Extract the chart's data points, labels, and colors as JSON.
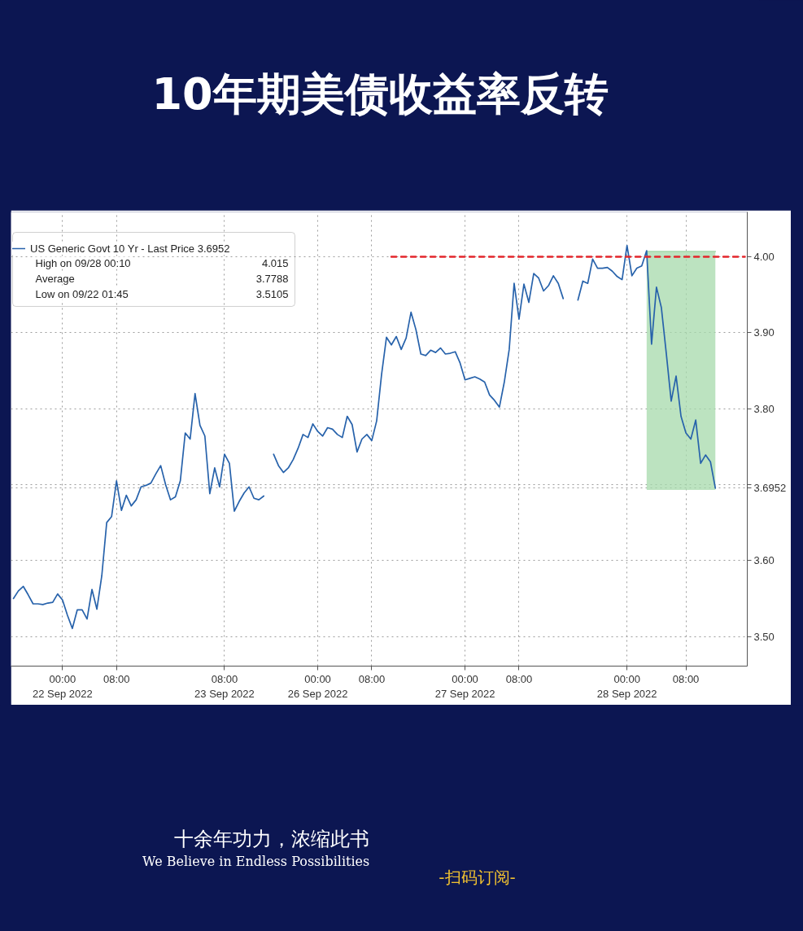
{
  "chart_data": {
    "type": "line",
    "title": "10年期美债收益率反转",
    "categories": [
      null,
      null,
      null,
      null,
      null,
      null,
      null,
      null,
      null,
      null,
      "00:00\n22 Sep 2022",
      null,
      null,
      null,
      null,
      null,
      null,
      null,
      null,
      null,
      null,
      "08:00",
      null,
      null,
      null,
      null,
      null,
      null,
      null,
      null,
      null,
      null,
      null,
      null,
      null,
      null,
      null,
      null,
      null,
      null,
      null,
      null,
      null,
      "08:00\n23 Sep 2022",
      null,
      null,
      null,
      null,
      null,
      null,
      null,
      null,
      null,
      null,
      null,
      null,
      null,
      null,
      null,
      null,
      null,
      null,
      "00:00\n26 Sep 2022",
      null,
      null,
      null,
      null,
      null,
      null,
      null,
      null,
      null,
      null,
      "08:00",
      null,
      null,
      null,
      null,
      null,
      null,
      null,
      null,
      null,
      null,
      null,
      null,
      null,
      null,
      null,
      null,
      null,
      null,
      "00:00\n27 Sep 2022",
      null,
      null,
      null,
      null,
      null,
      null,
      null,
      null,
      null,
      null,
      "08:00",
      null,
      null,
      null,
      null,
      null,
      null,
      null,
      null,
      null,
      null,
      null,
      null,
      null,
      null,
      null,
      null,
      null,
      null,
      null,
      null,
      null,
      "00:00\n28 Sep 2022",
      null,
      null,
      null,
      null,
      null,
      null,
      null,
      null,
      null,
      null,
      null,
      "08:00",
      null,
      null,
      null,
      null,
      null,
      null,
      null,
      null,
      null,
      null,
      null,
      null
    ],
    "ylim": [
      3.461,
      4.059
    ],
    "yticks": [
      {
        "value": 3.5,
        "label": "3.50"
      },
      {
        "value": 3.6,
        "label": "3.60"
      },
      {
        "value": 3.6952,
        "label": "3.6952"
      },
      {
        "value": 3.7,
        "label": null
      },
      {
        "value": 3.8,
        "label": "3.80"
      },
      {
        "value": 3.9,
        "label": "3.90"
      },
      {
        "value": 4.0,
        "label": "4.00"
      }
    ],
    "grid": true,
    "legend": "top left",
    "series": [
      {
        "type": "line",
        "color": "#a6d9ab",
        "values": [
          null,
          null,
          null,
          null,
          null,
          null,
          null,
          null,
          null,
          null,
          null,
          null,
          null,
          null,
          null,
          null,
          null,
          null,
          null,
          null,
          null,
          null,
          null,
          null,
          null,
          null,
          null,
          null,
          null,
          null,
          null,
          null,
          null,
          null,
          null,
          null,
          null,
          null,
          null,
          null,
          null,
          null,
          null,
          null,
          null,
          null,
          null,
          null,
          null,
          null,
          null,
          null,
          null,
          null,
          null,
          null,
          null,
          null,
          null,
          null,
          null,
          null,
          null,
          null,
          null,
          null,
          null,
          null,
          null,
          null,
          null,
          null,
          null,
          null,
          null,
          null,
          null,
          null,
          null,
          null,
          null,
          null,
          null,
          null,
          null,
          null,
          null,
          null,
          null,
          null,
          null,
          null,
          null,
          null,
          null,
          null,
          null,
          null,
          null,
          null,
          null,
          null,
          null,
          null,
          null,
          null,
          null,
          null,
          null,
          null,
          null,
          null,
          null,
          null,
          null,
          null,
          null,
          null,
          null,
          null,
          null,
          null,
          null,
          null,
          null,
          null,
          null,
          null,
          null,
          4.007,
          4.007,
          4.007,
          4.007,
          4.007,
          4.007,
          4.007,
          4.007,
          4.007,
          4.007,
          4.007,
          4.007,
          4.007,
          4.007,
          4.007,
          null,
          null,
          null,
          null,
          null,
          null
        ],
        "upper": [
          null,
          null,
          null,
          null,
          null,
          null,
          null,
          null,
          null,
          null,
          null,
          null,
          null,
          null,
          null,
          null,
          null,
          null,
          null,
          null,
          null,
          null,
          null,
          null,
          null,
          null,
          null,
          null,
          null,
          null,
          null,
          null,
          null,
          null,
          null,
          null,
          null,
          null,
          null,
          null,
          null,
          null,
          null,
          null,
          null,
          null,
          null,
          null,
          null,
          null,
          null,
          null,
          null,
          null,
          null,
          null,
          null,
          null,
          null,
          null,
          null,
          null,
          null,
          null,
          null,
          null,
          null,
          null,
          null,
          null,
          null,
          null,
          null,
          null,
          null,
          null,
          null,
          null,
          null,
          null,
          null,
          null,
          null,
          null,
          null,
          null,
          null,
          null,
          null,
          null,
          null,
          null,
          null,
          null,
          null,
          null,
          null,
          null,
          null,
          null,
          null,
          null,
          null,
          null,
          null,
          null,
          null,
          null,
          null,
          null,
          null,
          null,
          null,
          null,
          null,
          null,
          null,
          null,
          null,
          null,
          null,
          null,
          null,
          null,
          null,
          null,
          null,
          null,
          null,
          4.007,
          4.007,
          4.007,
          4.007,
          4.007,
          4.007,
          4.007,
          4.007,
          4.007,
          4.007,
          4.007,
          4.007,
          4.007,
          4.007,
          4.007,
          null,
          null,
          null,
          null,
          null,
          null
        ],
        "lower": [
          null,
          null,
          null,
          null,
          null,
          null,
          null,
          null,
          null,
          null,
          null,
          null,
          null,
          null,
          null,
          null,
          null,
          null,
          null,
          null,
          null,
          null,
          null,
          null,
          null,
          null,
          null,
          null,
          null,
          null,
          null,
          null,
          null,
          null,
          null,
          null,
          null,
          null,
          null,
          null,
          null,
          null,
          null,
          null,
          null,
          null,
          null,
          null,
          null,
          null,
          null,
          null,
          null,
          null,
          null,
          null,
          null,
          null,
          null,
          null,
          null,
          null,
          null,
          null,
          null,
          null,
          null,
          null,
          null,
          null,
          null,
          null,
          null,
          null,
          null,
          null,
          null,
          null,
          null,
          null,
          null,
          null,
          null,
          null,
          null,
          null,
          null,
          null,
          null,
          null,
          null,
          null,
          null,
          null,
          null,
          null,
          null,
          null,
          null,
          null,
          null,
          null,
          null,
          null,
          null,
          null,
          null,
          null,
          null,
          null,
          null,
          null,
          null,
          null,
          null,
          null,
          null,
          null,
          null,
          null,
          null,
          null,
          null,
          null,
          null,
          null,
          null,
          null,
          null,
          3.693,
          3.693,
          3.693,
          3.693,
          3.693,
          3.693,
          3.693,
          3.693,
          3.693,
          3.693,
          3.693,
          3.693,
          3.693,
          3.693,
          3.693,
          null,
          null,
          null,
          null,
          null,
          null
        ]
      },
      {
        "name": "US Generic Govt 10 Yr - Last Price 3.6952",
        "color": "#2762ab",
        "values": [
          3.55,
          3.56,
          3.566,
          3.555,
          3.543,
          3.543,
          3.542,
          3.544,
          3.545,
          3.556,
          3.548,
          3.528,
          3.5105,
          3.535,
          3.535,
          3.523,
          3.562,
          3.536,
          3.58,
          3.65,
          3.658,
          3.705,
          3.666,
          3.686,
          3.672,
          3.68,
          3.697,
          3.699,
          3.702,
          3.714,
          3.725,
          3.7,
          3.68,
          3.684,
          3.705,
          3.768,
          3.76,
          3.82,
          3.778,
          3.764,
          3.688,
          3.722,
          3.697,
          3.74,
          3.728,
          3.665,
          3.678,
          3.689,
          3.697,
          3.682,
          3.68,
          3.685,
          null,
          3.74,
          3.725,
          3.716,
          3.722,
          3.733,
          3.748,
          3.766,
          3.762,
          3.78,
          3.77,
          3.764,
          3.775,
          3.773,
          3.766,
          3.762,
          3.79,
          3.779,
          3.743,
          3.76,
          3.766,
          3.758,
          3.784,
          3.845,
          3.894,
          3.884,
          3.895,
          3.878,
          3.893,
          3.927,
          3.904,
          3.872,
          3.87,
          3.877,
          3.874,
          3.88,
          3.872,
          3.873,
          3.875,
          3.86,
          3.838,
          3.84,
          3.842,
          3.839,
          3.835,
          3.818,
          3.811,
          3.802,
          3.835,
          3.878,
          3.965,
          3.918,
          3.964,
          3.94,
          3.978,
          3.972,
          3.955,
          3.962,
          3.975,
          3.965,
          3.945,
          null,
          null,
          3.943,
          3.968,
          3.965,
          3.997,
          3.985,
          3.985,
          3.986,
          3.981,
          3.974,
          3.97,
          4.015,
          3.975,
          3.985,
          3.988,
          4.008,
          3.885,
          3.96,
          3.933,
          3.873,
          3.81,
          3.843,
          3.79,
          3.768,
          3.76,
          3.785,
          3.728,
          3.739,
          3.73,
          3.6952,
          null,
          null,
          null,
          null,
          null,
          null
        ]
      },
      {
        "type": "line",
        "color": "#e3262b",
        "line_style": "dashed",
        "values": [
          null,
          null,
          null,
          null,
          null,
          null,
          null,
          null,
          null,
          null,
          null,
          null,
          null,
          null,
          null,
          null,
          null,
          null,
          null,
          null,
          null,
          null,
          null,
          null,
          null,
          null,
          null,
          null,
          null,
          null,
          null,
          null,
          null,
          null,
          null,
          null,
          null,
          null,
          null,
          null,
          null,
          null,
          null,
          null,
          null,
          null,
          null,
          null,
          null,
          null,
          null,
          null,
          null,
          null,
          null,
          null,
          null,
          null,
          null,
          null,
          null,
          null,
          null,
          null,
          null,
          null,
          null,
          null,
          null,
          null,
          null,
          null,
          null,
          null,
          null,
          null,
          null,
          4.0,
          4.0,
          4.0,
          4.0,
          4.0,
          4.0,
          4.0,
          4.0,
          4.0,
          4.0,
          4.0,
          4.0,
          4.0,
          4.0,
          4.0,
          4.0,
          4.0,
          4.0,
          4.0,
          4.0,
          4.0,
          4.0,
          4.0,
          4.0,
          4.0,
          4.0,
          4.0,
          4.0,
          4.0,
          4.0,
          4.0,
          4.0,
          4.0,
          4.0,
          4.0,
          4.0,
          4.0,
          4.0,
          4.0,
          4.0,
          4.0,
          4.0,
          4.0,
          4.0,
          4.0,
          4.0,
          4.0,
          4.0,
          4.0,
          4.0,
          4.0,
          4.0,
          4.0,
          4.0,
          4.0,
          4.0,
          4.0,
          4.0,
          4.0,
          4.0,
          4.0,
          4.0,
          4.0,
          4.0,
          4.0,
          4.0,
          4.0,
          4.0,
          4.0,
          4.0,
          4.0,
          4.0,
          4.0
        ]
      }
    ],
    "annotations": [
      "High on 09/28 00:10 4.015",
      "Average 3.7788",
      "Low on 09/22 01:45 3.5105",
      "十余年功力，浓缩此书",
      "We Believe in Endless Possibilities",
      "-扫码订阅-"
    ]
  }
}
